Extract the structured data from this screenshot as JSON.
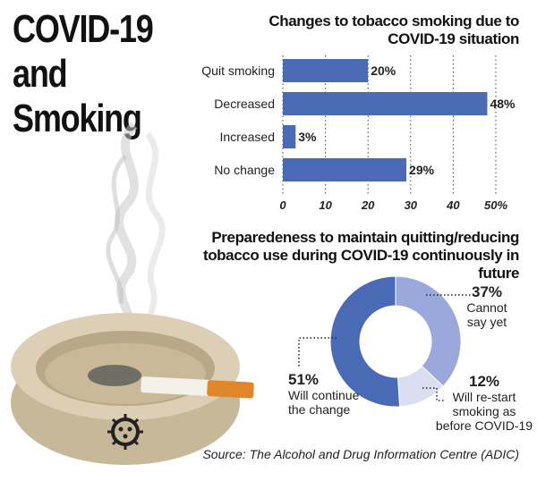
{
  "header": {
    "title_line1": "COVID-19 and",
    "title_line2": "Smoking"
  },
  "source_text": "Source: The Alcohol and Drug Information Centre (ADIC)",
  "chart_data": [
    {
      "type": "bar",
      "orientation": "horizontal",
      "title": "Changes to tobacco smoking due to COVID-19 situation",
      "categories": [
        "Quit smoking",
        "Decreased",
        "Increased",
        "No change"
      ],
      "values": [
        20,
        48,
        3,
        29
      ],
      "value_labels": [
        "20%",
        "48%",
        "3%",
        "29%"
      ],
      "xlim": [
        0,
        50
      ],
      "x_ticks": [
        "0",
        "10",
        "20",
        "30",
        "40",
        "50%"
      ],
      "grid": "dotted vertical",
      "color": "#4a6ab5"
    },
    {
      "type": "pie",
      "variant": "donut",
      "title": "Preparedeness to maintain quitting/reducing tobacco use during COVID-19 continuously in future",
      "slices": [
        {
          "label": "Cannot say yet",
          "value": 37,
          "pct": "37%",
          "desc_lines": [
            "Cannot",
            "say yet"
          ],
          "color": "#9aa8dc"
        },
        {
          "label": "Will re-start smoking as before COVID-19",
          "value": 12,
          "pct": "12%",
          "desc_lines": [
            "Will re-start",
            "smoking as",
            "before COVID-19"
          ],
          "color": "#d9def3"
        },
        {
          "label": "Will continue the change",
          "value": 51,
          "pct": "51%",
          "desc_lines": [
            "Will continue",
            "the change"
          ],
          "color": "#4a6ab5"
        }
      ]
    }
  ]
}
